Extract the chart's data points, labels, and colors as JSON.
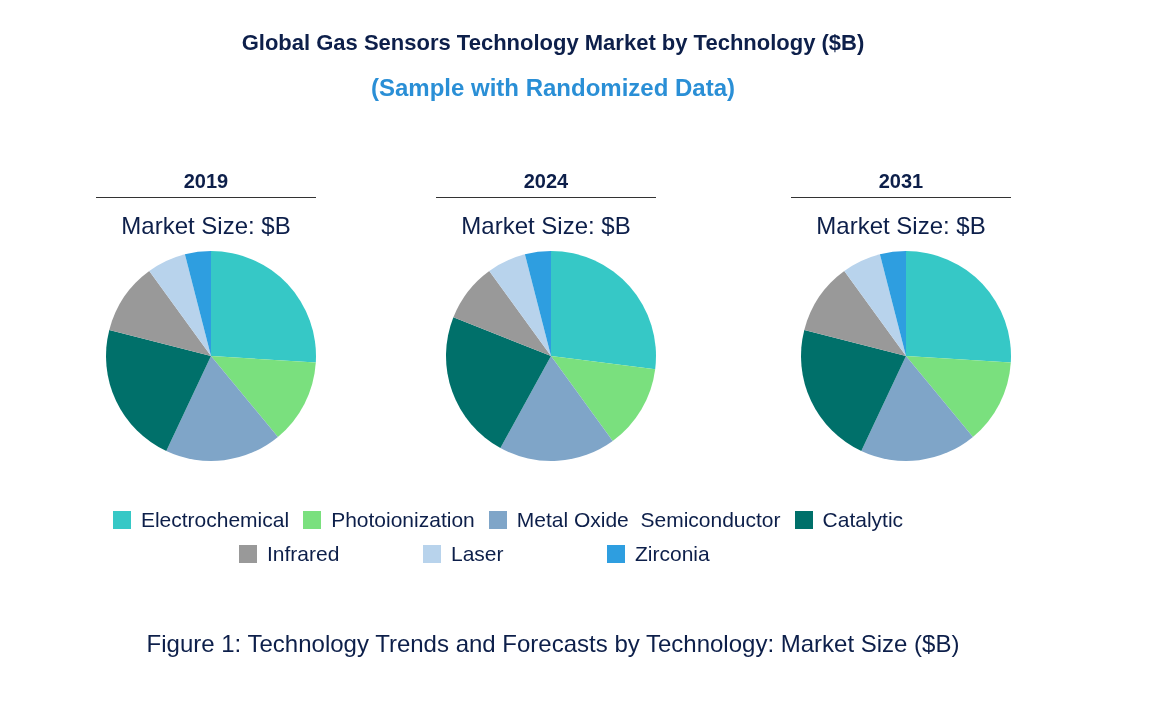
{
  "chart_data": [
    {
      "type": "other",
      "title": "Global Gas Sensors Technology Market by Technology ($B)",
      "subtitle": "(Sample with Randomized Data)"
    },
    {
      "type": "pie",
      "title": "2019",
      "subtitle": "Market Size: $B",
      "legend": "bottom",
      "categories": [
        "Electrochemical",
        "Photoionization",
        "Metal Oxide  Semiconductor",
        "Catalytic",
        "Infrared",
        "Laser",
        "Zirconia"
      ],
      "values": [
        26,
        13,
        18,
        22,
        11,
        6,
        4
      ],
      "colors": [
        "#36c8c6",
        "#7ae07e",
        "#7fa5c8",
        "#00706a",
        "#999999",
        "#b8d3ec",
        "#2e9ee0"
      ]
    },
    {
      "type": "pie",
      "title": "2024",
      "subtitle": "Market Size: $B",
      "categories": [
        null,
        null,
        null,
        null,
        null,
        null,
        null
      ],
      "values": [
        27,
        13,
        18,
        23,
        9,
        6,
        4
      ],
      "colors": [
        "#36c8c6",
        "#7ae07e",
        "#7fa5c8",
        "#00706a",
        "#999999",
        "#b8d3ec",
        "#2e9ee0"
      ]
    },
    {
      "type": "pie",
      "title": "2031",
      "subtitle": "Market Size: $B",
      "categories": [
        null,
        null,
        null,
        null,
        null,
        null,
        null
      ],
      "values": [
        26,
        13,
        18,
        22,
        11,
        6,
        4
      ],
      "colors": [
        "#36c8c6",
        "#7ae07e",
        "#7fa5c8",
        "#00706a",
        "#999999",
        "#b8d3ec",
        "#2e9ee0"
      ]
    },
    {
      "type": "other",
      "annotations": [
        "Figure 1: Technology Trends and Forecasts by Technology: Market Size ($B)"
      ]
    }
  ]
}
